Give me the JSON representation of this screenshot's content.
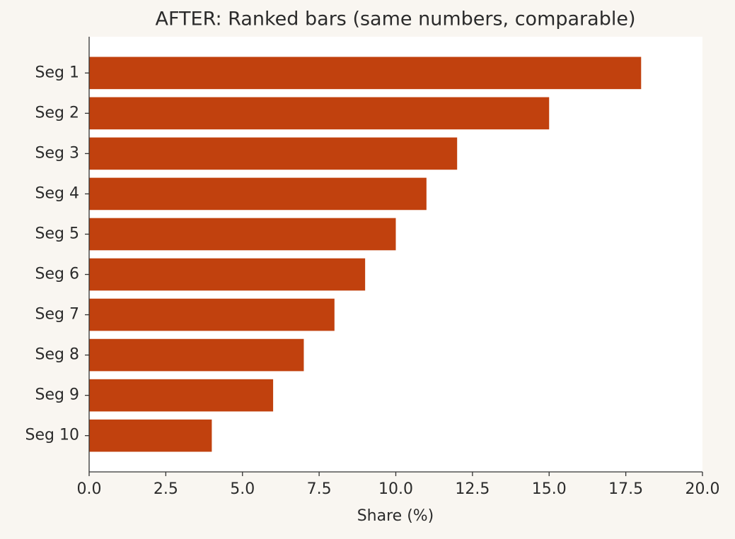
{
  "chart_data": {
    "type": "barh",
    "title": "AFTER: Ranked bars (same numbers, comparable)",
    "xlabel": "Share (%)",
    "categories": [
      "Seg 1",
      "Seg 2",
      "Seg 3",
      "Seg 4",
      "Seg 5",
      "Seg 6",
      "Seg 7",
      "Seg 8",
      "Seg 9",
      "Seg 10"
    ],
    "values": [
      18,
      15,
      12,
      11,
      10,
      9,
      8,
      7,
      6,
      4
    ],
    "color": "#c1410e",
    "xlim": [
      0,
      20
    ],
    "xticks": [
      {
        "value": 0,
        "label": "0.0"
      },
      2.5,
      {
        "value": 5,
        "label": "5.0"
      },
      7.5,
      {
        "value": 10,
        "label": "10.0"
      },
      12.5,
      {
        "value": 15,
        "label": "15.0"
      },
      17.5,
      {
        "value": 20,
        "label": "20.0"
      }
    ]
  }
}
